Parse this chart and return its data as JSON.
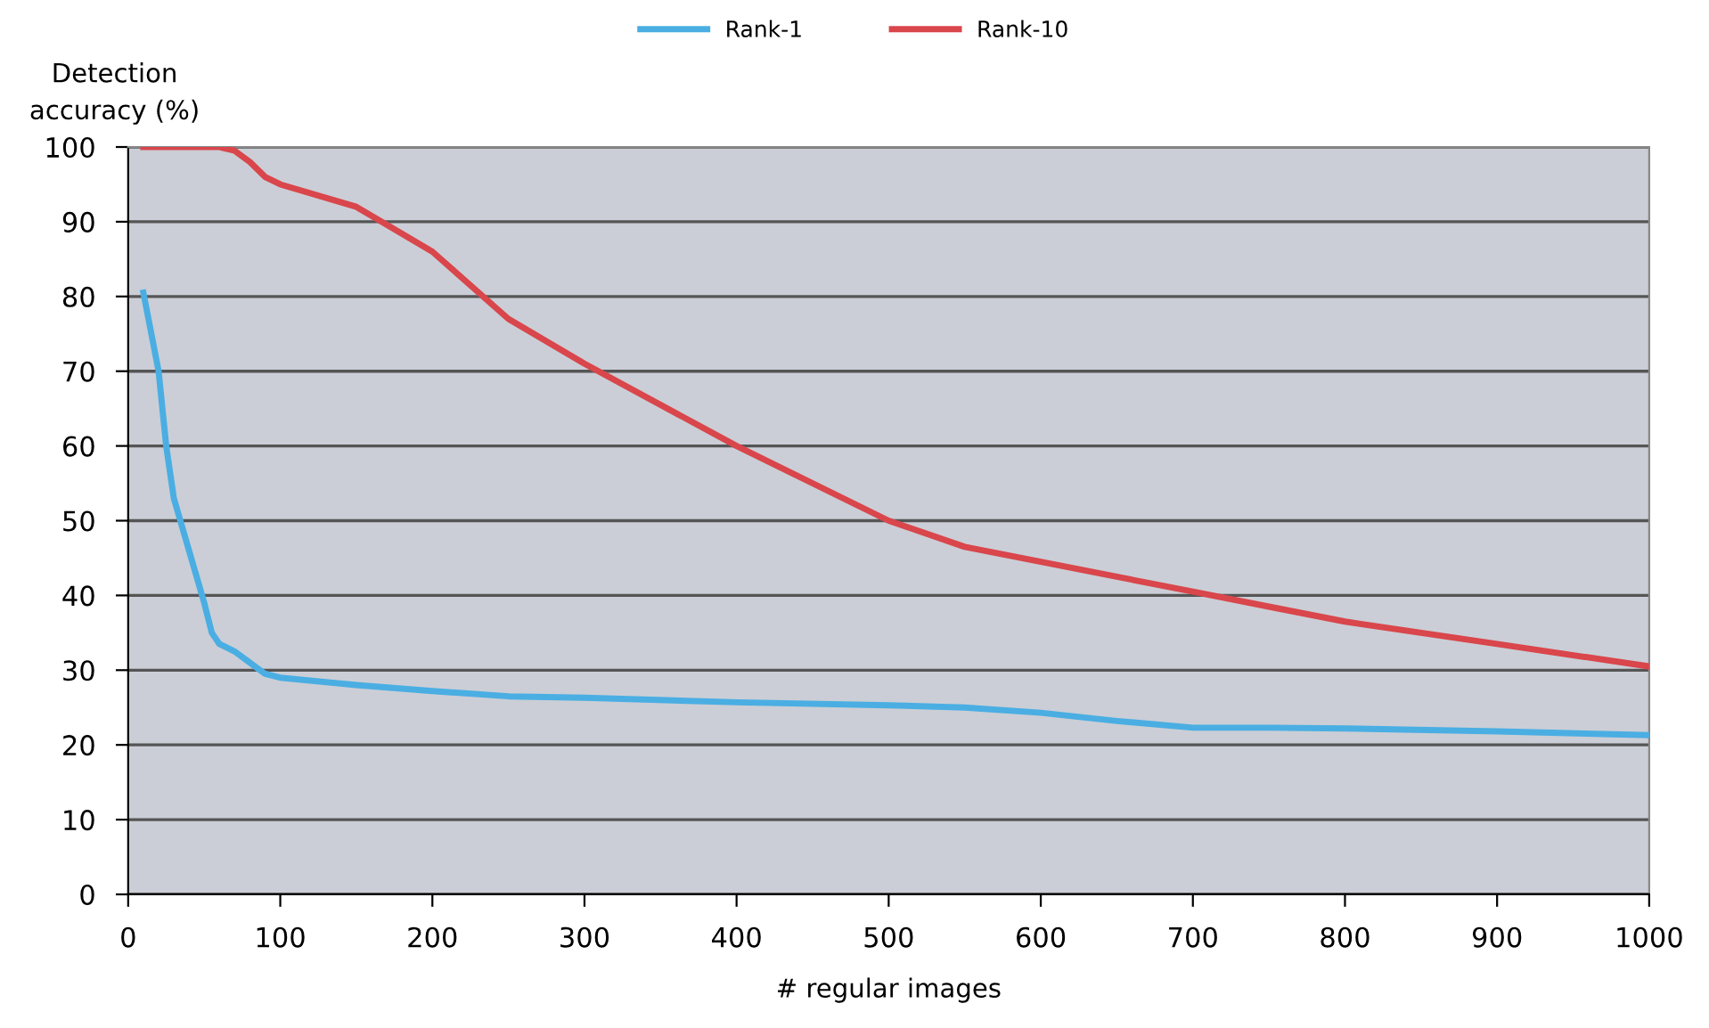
{
  "chart_data": {
    "type": "line",
    "xlabel": "# regular images",
    "ylabel": "Detection\naccuracy (%)",
    "xlim": [
      0,
      1000
    ],
    "xticks": [
      0,
      100,
      200,
      300,
      400,
      500,
      600,
      700,
      800,
      900,
      1000
    ],
    "ylim": [
      0,
      100
    ],
    "yticks": [
      0,
      10,
      20,
      30,
      40,
      50,
      60,
      70,
      80,
      90,
      100
    ],
    "grid": "y",
    "legend": "top",
    "marker": "none",
    "line_style": "solid",
    "series": [
      {
        "name": "Rank-1",
        "color": "#4aaee3",
        "x": [
          10,
          20,
          25,
          30,
          40,
          50,
          55,
          60,
          70,
          80,
          90,
          100,
          150,
          200,
          250,
          300,
          400,
          500,
          550,
          600,
          650,
          700,
          750,
          800,
          900,
          1000
        ],
        "values": [
          80.5,
          70,
          60,
          53,
          46,
          39,
          35,
          33.5,
          32.5,
          31,
          29.5,
          29,
          28,
          27.2,
          26.5,
          26.3,
          25.7,
          25.3,
          25,
          24.3,
          23.2,
          22.3,
          22.3,
          22.2,
          21.8,
          21.3
        ]
      },
      {
        "name": "Rank-10",
        "color": "#d9464b",
        "x": [
          10,
          60,
          70,
          80,
          90,
          100,
          150,
          200,
          250,
          300,
          400,
          500,
          550,
          600,
          650,
          700,
          750,
          800,
          900,
          1000
        ],
        "values": [
          100,
          100,
          99.5,
          98,
          96,
          95,
          92,
          86,
          77,
          71,
          60,
          50,
          46.5,
          44.5,
          42.5,
          40.5,
          38.5,
          36.5,
          33.5,
          30.5
        ]
      }
    ]
  }
}
